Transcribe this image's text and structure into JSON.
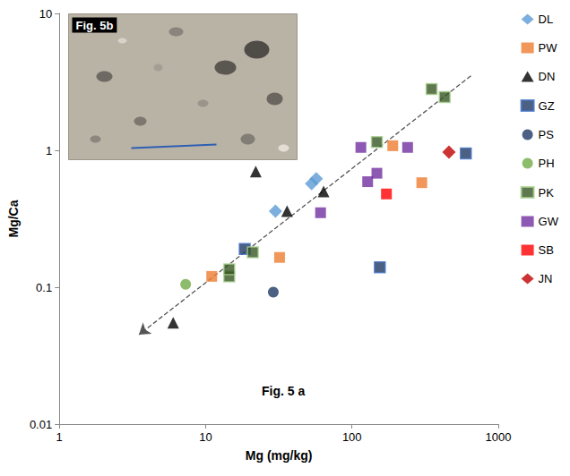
{
  "chart_data": {
    "type": "scatter",
    "x_label": "Mg (mg/kg)",
    "y_label": "Mg/Ca",
    "annotation": "Fig. 5 a",
    "inset_title": "Fig. 5b",
    "log": true,
    "grid": false,
    "legend": "right",
    "xlim": [
      1,
      1000
    ],
    "xticks": [
      1,
      10,
      100,
      1000
    ],
    "ylim": [
      0.01,
      10
    ],
    "yticks": [
      0.01,
      0.1,
      1,
      10
    ],
    "trend_line": {
      "x": [
        650,
        3.5
      ],
      "values": [
        3.5,
        0.045
      ],
      "line_style": "dashed",
      "marker": "arrow",
      "color": "#555555"
    },
    "series": [
      {
        "name": "DL",
        "color": "#5b9bd5",
        "marker": "diamond",
        "x": [
          30,
          53,
          57
        ],
        "values": [
          0.36,
          0.57,
          0.62
        ]
      },
      {
        "name": "PW",
        "color": "#ed7d31",
        "marker": "square",
        "x": [
          11,
          32,
          190,
          300
        ],
        "values": [
          0.12,
          0.165,
          1.08,
          0.58
        ]
      },
      {
        "name": "DN",
        "color": "#000000",
        "marker": "triangle",
        "x": [
          6,
          22,
          36,
          64
        ],
        "values": [
          0.055,
          0.7,
          0.36,
          0.5
        ]
      },
      {
        "name": "GZ",
        "color": "#1f3864",
        "marker": "square_x",
        "x": [
          18.5,
          155,
          600
        ],
        "values": [
          0.19,
          0.14,
          0.95
        ]
      },
      {
        "name": "PS",
        "color": "#1f3864",
        "marker": "circle",
        "x": [
          29
        ],
        "values": [
          0.092
        ]
      },
      {
        "name": "PH",
        "color": "#70ad47",
        "marker": "circle",
        "x": [
          7.3
        ],
        "values": [
          0.105
        ]
      },
      {
        "name": "PK",
        "color": "#375623",
        "marker": "square_grid",
        "x": [
          14.5,
          14.5,
          21,
          148,
          350,
          430
        ],
        "values": [
          0.12,
          0.135,
          0.18,
          1.15,
          2.8,
          2.45
        ]
      },
      {
        "name": "GW",
        "color": "#7030a0",
        "marker": "square",
        "x": [
          61,
          115,
          128,
          148,
          240
        ],
        "values": [
          0.35,
          1.05,
          0.59,
          0.68,
          1.05
        ]
      },
      {
        "name": "SB",
        "color": "#ff0000",
        "marker": "square",
        "x": [
          172
        ],
        "values": [
          0.48
        ]
      },
      {
        "name": "JN",
        "color": "#c00000",
        "marker": "diamond",
        "x": [
          460
        ],
        "values": [
          0.97
        ]
      }
    ]
  }
}
